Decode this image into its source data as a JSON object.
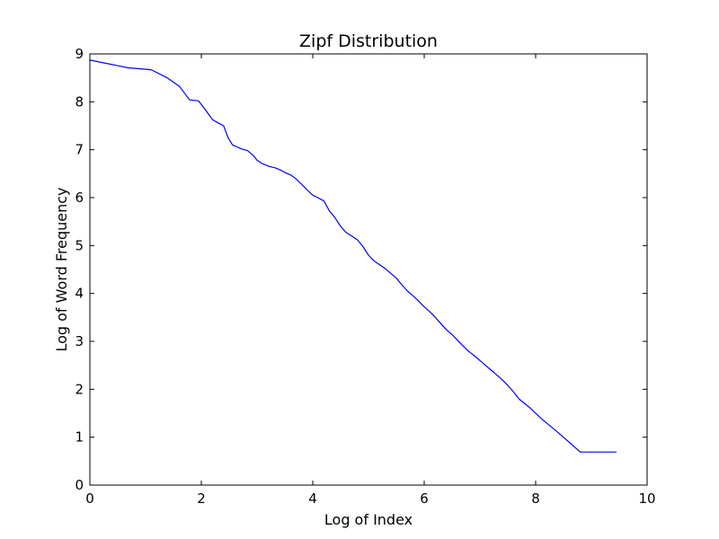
{
  "chart_data": {
    "type": "line",
    "title": "Zipf Distribution",
    "xlabel": "Log of Index",
    "ylabel": "Log of Word Frequency",
    "xlim": [
      0,
      10
    ],
    "ylim": [
      0,
      9
    ],
    "x_ticks": [
      0,
      2,
      4,
      6,
      8,
      10
    ],
    "y_ticks": [
      0,
      1,
      2,
      3,
      4,
      5,
      6,
      7,
      8,
      9
    ],
    "grid": false,
    "legend": "none",
    "line_color": "#0000ff",
    "series": [
      {
        "x": [
          0,
          0.69,
          1.1,
          1.39,
          1.61,
          1.79,
          1.95,
          2.08,
          2.2,
          2.3,
          2.4,
          2.48,
          2.56,
          2.64,
          2.71,
          2.83,
          2.94,
          3.0,
          3.09,
          3.22,
          3.33,
          3.43,
          3.51,
          3.61,
          3.69,
          3.78,
          3.85,
          3.91,
          4.0,
          4.09,
          4.2,
          4.3,
          4.4,
          4.5,
          4.6,
          4.7,
          4.8,
          4.9,
          5.0,
          5.1,
          5.2,
          5.3,
          5.4,
          5.5,
          5.6,
          5.7,
          5.8,
          5.9,
          6.0,
          6.1,
          6.2,
          6.3,
          6.4,
          6.5,
          6.6,
          6.7,
          6.8,
          6.9,
          7.0,
          7.1,
          7.2,
          7.3,
          7.4,
          7.5,
          7.6,
          7.7,
          7.9,
          8.1,
          8.4,
          8.8,
          9.45
        ],
        "y": [
          8.87,
          8.71,
          8.67,
          8.5,
          8.32,
          8.04,
          8.02,
          7.82,
          7.63,
          7.56,
          7.5,
          7.25,
          7.1,
          7.06,
          7.02,
          6.98,
          6.87,
          6.78,
          6.71,
          6.65,
          6.62,
          6.57,
          6.52,
          6.47,
          6.4,
          6.3,
          6.22,
          6.15,
          6.05,
          6.0,
          5.93,
          5.72,
          5.58,
          5.4,
          5.27,
          5.2,
          5.12,
          4.98,
          4.8,
          4.68,
          4.6,
          4.52,
          4.42,
          4.32,
          4.18,
          4.05,
          3.95,
          3.84,
          3.72,
          3.62,
          3.5,
          3.37,
          3.24,
          3.14,
          3.02,
          2.9,
          2.79,
          2.7,
          2.6,
          2.5,
          2.4,
          2.3,
          2.2,
          2.08,
          1.95,
          1.8,
          1.61,
          1.39,
          1.1,
          0.69,
          0.69
        ]
      }
    ]
  }
}
